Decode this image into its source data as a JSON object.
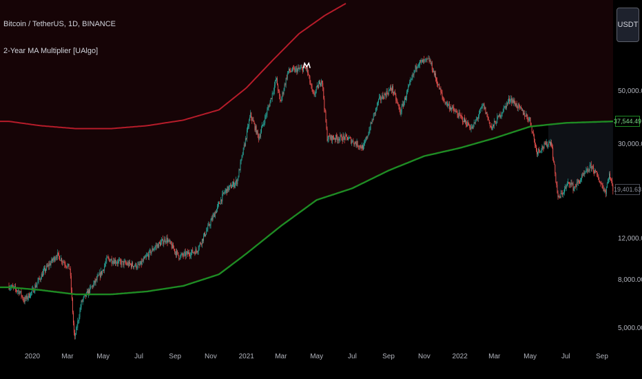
{
  "header": {
    "symbol": "Bitcoin / TetherUS, 1D, BINANCE",
    "indicator": "2-Year MA Multiplier [UAlgo]"
  },
  "currency_button": "USDT",
  "colors": {
    "background": "#000000",
    "upper_band": "#b71c2a",
    "ma_line": "#1e8c24",
    "upper_fill": "#160406",
    "lower_fill": "#0e1116",
    "candle_up": "#26a69a",
    "candle_down": "#ef5350"
  },
  "price_tags": {
    "ma_value": "37,544.49",
    "last_price": "19,401.63"
  },
  "chart_data": {
    "type": "line",
    "scale": "log",
    "ylim": [
      4300,
      122000
    ],
    "y_ticks": [
      {
        "value": 50000,
        "label": "50,000.00"
      },
      {
        "value": 30000,
        "label": "30,000.00"
      },
      {
        "value": 12000,
        "label": "12,000.00"
      },
      {
        "value": 8000,
        "label": "8,000.00"
      },
      {
        "value": 5000,
        "label": "5,000.00"
      }
    ],
    "x_ticks": [
      {
        "date": "2020-01-01",
        "label": "2020"
      },
      {
        "date": "2020-03-01",
        "label": "Mar"
      },
      {
        "date": "2020-05-01",
        "label": "May"
      },
      {
        "date": "2020-07-01",
        "label": "Jul"
      },
      {
        "date": "2020-09-01",
        "label": "Sep"
      },
      {
        "date": "2020-11-01",
        "label": "Nov"
      },
      {
        "date": "2021-01-01",
        "label": "2021"
      },
      {
        "date": "2021-03-01",
        "label": "Mar"
      },
      {
        "date": "2021-05-01",
        "label": "May"
      },
      {
        "date": "2021-07-01",
        "label": "Jul"
      },
      {
        "date": "2021-09-01",
        "label": "Sep"
      },
      {
        "date": "2021-11-01",
        "label": "Nov"
      },
      {
        "date": "2022-01-01",
        "label": "2022"
      },
      {
        "date": "2022-03-01",
        "label": "Mar"
      },
      {
        "date": "2022-05-01",
        "label": "May"
      },
      {
        "date": "2022-07-01",
        "label": "Jul"
      },
      {
        "date": "2022-09-01",
        "label": "Sep"
      }
    ],
    "series": [
      {
        "key": "upper",
        "color": "#b71c2a",
        "points": [
          [
            "2019-11-22",
            37544
          ],
          [
            "2020-01-15",
            36000
          ],
          [
            "2020-03-15",
            35000
          ],
          [
            "2020-05-15",
            35000
          ],
          [
            "2020-07-15",
            36000
          ],
          [
            "2020-09-15",
            38000
          ],
          [
            "2020-11-15",
            42000
          ],
          [
            "2021-01-01",
            52000
          ],
          [
            "2021-02-15",
            68000
          ],
          [
            "2021-04-01",
            88000
          ],
          [
            "2021-05-15",
            105000
          ],
          [
            "2021-06-20",
            118000
          ]
        ]
      },
      {
        "key": "ma",
        "color": "#1e8c24",
        "points": [
          [
            "2019-11-22",
            7500
          ],
          [
            "2020-01-15",
            7300
          ],
          [
            "2020-03-15",
            7000
          ],
          [
            "2020-05-15",
            7000
          ],
          [
            "2020-07-15",
            7200
          ],
          [
            "2020-09-15",
            7600
          ],
          [
            "2020-11-15",
            8500
          ],
          [
            "2021-01-01",
            10400
          ],
          [
            "2021-03-01",
            13600
          ],
          [
            "2021-05-01",
            17500
          ],
          [
            "2021-07-01",
            19600
          ],
          [
            "2021-09-01",
            23300
          ],
          [
            "2021-11-01",
            26800
          ],
          [
            "2022-01-01",
            29000
          ],
          [
            "2022-03-01",
            31900
          ],
          [
            "2022-05-01",
            35700
          ],
          [
            "2022-07-01",
            37000
          ],
          [
            "2022-09-20",
            37544
          ]
        ]
      },
      {
        "key": "price",
        "color": "#d1d4dc",
        "points": [
          [
            "2019-11-22",
            7600
          ],
          [
            "2019-12-10",
            7200
          ],
          [
            "2019-12-18",
            6600
          ],
          [
            "2020-01-01",
            7200
          ],
          [
            "2020-01-20",
            8700
          ],
          [
            "2020-02-12",
            10300
          ],
          [
            "2020-03-05",
            9000
          ],
          [
            "2020-03-12",
            4900
          ],
          [
            "2020-03-13",
            4500
          ],
          [
            "2020-03-25",
            6500
          ],
          [
            "2020-04-08",
            7300
          ],
          [
            "2020-04-30",
            8800
          ],
          [
            "2020-05-08",
            9900
          ],
          [
            "2020-06-01",
            9500
          ],
          [
            "2020-07-01",
            9200
          ],
          [
            "2020-07-27",
            11000
          ],
          [
            "2020-08-17",
            12000
          ],
          [
            "2020-09-08",
            10100
          ],
          [
            "2020-10-08",
            10700
          ],
          [
            "2020-10-25",
            13000
          ],
          [
            "2020-11-25",
            19000
          ],
          [
            "2020-12-16",
            21000
          ],
          [
            "2021-01-08",
            40000
          ],
          [
            "2021-01-22",
            32000
          ],
          [
            "2021-02-10",
            45000
          ],
          [
            "2021-02-21",
            57000
          ],
          [
            "2021-02-28",
            45000
          ],
          [
            "2021-03-13",
            61000
          ],
          [
            "2021-04-14",
            63000
          ],
          [
            "2021-04-25",
            48000
          ],
          [
            "2021-05-10",
            57000
          ],
          [
            "2021-05-19",
            32000
          ],
          [
            "2021-06-22",
            32000
          ],
          [
            "2021-07-20",
            29000
          ],
          [
            "2021-08-15",
            46000
          ],
          [
            "2021-09-07",
            52000
          ],
          [
            "2021-09-21",
            41000
          ],
          [
            "2021-10-20",
            66000
          ],
          [
            "2021-11-10",
            68000
          ],
          [
            "2021-12-04",
            46000
          ],
          [
            "2022-01-22",
            35000
          ],
          [
            "2022-02-10",
            44000
          ],
          [
            "2022-02-24",
            35000
          ],
          [
            "2022-03-28",
            47000
          ],
          [
            "2022-05-01",
            38000
          ],
          [
            "2022-05-12",
            28000
          ],
          [
            "2022-06-06",
            31000
          ],
          [
            "2022-06-18",
            17600
          ],
          [
            "2022-07-08",
            21000
          ],
          [
            "2022-07-14",
            19600
          ],
          [
            "2022-08-14",
            24400
          ],
          [
            "2022-09-07",
            18900
          ],
          [
            "2022-09-13",
            22500
          ],
          [
            "2022-09-20",
            19401
          ]
        ]
      }
    ]
  }
}
